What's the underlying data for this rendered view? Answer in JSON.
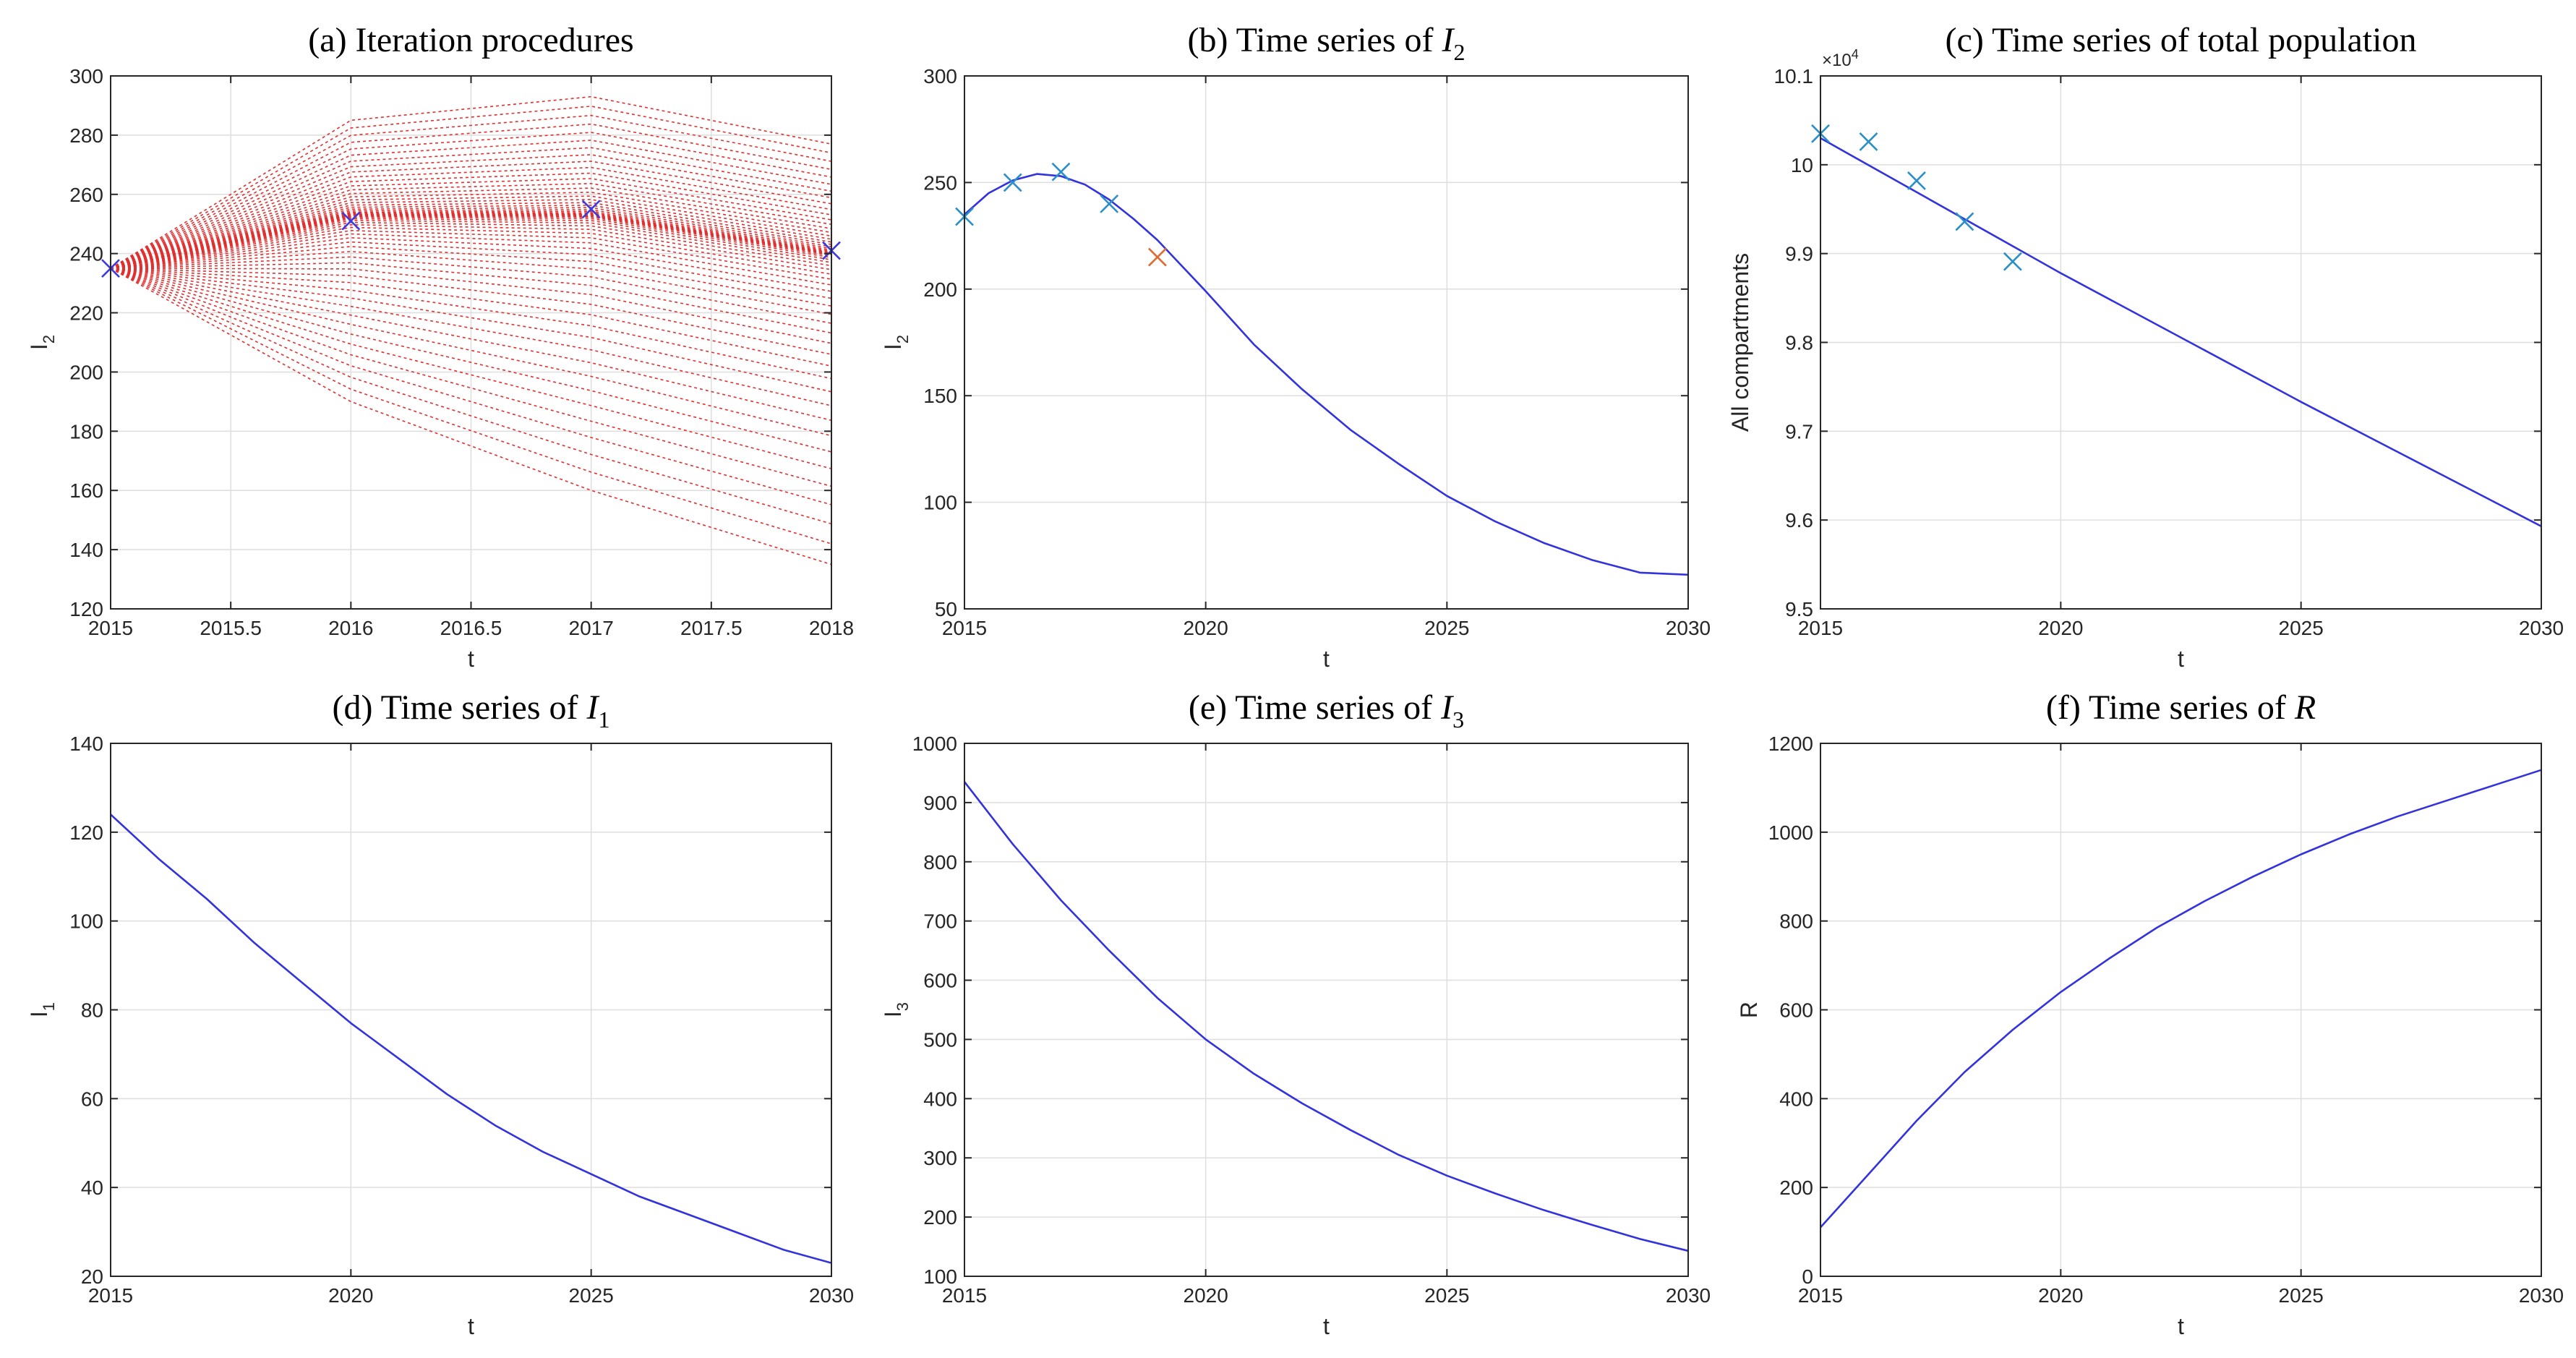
{
  "colors": {
    "curve": "#3333dd",
    "iteration": "#e03030",
    "marker_blue": "#3a3ae0",
    "marker_cyan": "#2a8fc8",
    "marker_orange": "#e06a30",
    "grid": "#dedede",
    "axes": "#262626"
  },
  "chart_data": [
    {
      "id": "a",
      "type": "line",
      "title": "(a) Iteration procedures",
      "title_prefix": "(a) Iteration procedures",
      "title_var": "",
      "title_sub": "",
      "xlabel": "t",
      "ylabel": "I",
      "ylabel_sub": "2",
      "xlim": [
        2015,
        2018
      ],
      "ylim": [
        120,
        300
      ],
      "xticks": [
        2015,
        2015.5,
        2016,
        2016.5,
        2017,
        2017.5,
        2018
      ],
      "xtick_labels": [
        "2015",
        "2015.5",
        "2016",
        "2016.5",
        "2017",
        "2017.5",
        "2018"
      ],
      "yticks": [
        120,
        140,
        160,
        180,
        200,
        220,
        240,
        260,
        280,
        300
      ],
      "ytick_labels": [
        "120",
        "140",
        "160",
        "180",
        "200",
        "220",
        "240",
        "260",
        "280",
        "300"
      ],
      "iterations": {
        "x": [
          2015,
          2016,
          2017,
          2018
        ],
        "start": 235,
        "max_curve": [
          285,
          293,
          277
        ],
        "min_curve": [
          190,
          160,
          135
        ],
        "converged": [
          253,
          253,
          240
        ],
        "count": 60
      },
      "markers": [
        {
          "x": 2015,
          "y": 235,
          "color": "marker_blue"
        },
        {
          "x": 2016,
          "y": 251,
          "color": "marker_blue"
        },
        {
          "x": 2017,
          "y": 255,
          "color": "marker_blue"
        },
        {
          "x": 2018,
          "y": 241,
          "color": "marker_blue"
        }
      ]
    },
    {
      "id": "b",
      "type": "line",
      "title": "(b) Time series of I2",
      "title_prefix": "(b) Time series of ",
      "title_var": "I",
      "title_sub": "2",
      "xlabel": "t",
      "ylabel": "I",
      "ylabel_sub": "2",
      "xlim": [
        2015,
        2030
      ],
      "ylim": [
        50,
        300
      ],
      "xticks": [
        2015,
        2020,
        2025,
        2030
      ],
      "xtick_labels": [
        "2015",
        "2020",
        "2025",
        "2030"
      ],
      "yticks": [
        50,
        100,
        150,
        200,
        250,
        300
      ],
      "ytick_labels": [
        "50",
        "100",
        "150",
        "200",
        "250",
        "300"
      ],
      "series": [
        {
          "name": "I2",
          "x": [
            2015,
            2015.5,
            2016,
            2016.5,
            2017,
            2017.5,
            2018,
            2018.5,
            2019,
            2019.5,
            2020,
            2021,
            2022,
            2023,
            2024,
            2025,
            2026,
            2027,
            2028,
            2029,
            2030
          ],
          "y": [
            235,
            245,
            251,
            254,
            253,
            249,
            242,
            233,
            223,
            211,
            199,
            174,
            153,
            134,
            118,
            103,
            91,
            81,
            73,
            67,
            66
          ]
        }
      ],
      "markers": [
        {
          "x": 2015,
          "y": 234,
          "color": "marker_cyan"
        },
        {
          "x": 2016,
          "y": 250,
          "color": "marker_cyan"
        },
        {
          "x": 2017,
          "y": 255,
          "color": "marker_cyan"
        },
        {
          "x": 2018,
          "y": 240,
          "color": "marker_cyan"
        },
        {
          "x": 2019,
          "y": 215,
          "color": "marker_orange"
        }
      ]
    },
    {
      "id": "c",
      "type": "line",
      "title": "(c) Time series of total population",
      "title_prefix": "(c) Time series of total population",
      "title_var": "",
      "title_sub": "",
      "xlabel": "t",
      "ylabel": "All compartments",
      "ylabel_sub": "",
      "exponent": "×10",
      "exponent_power": "4",
      "xlim": [
        2015,
        2030
      ],
      "ylim": [
        9.5,
        10.1
      ],
      "xticks": [
        2015,
        2020,
        2025,
        2030
      ],
      "xtick_labels": [
        "2015",
        "2020",
        "2025",
        "2030"
      ],
      "yticks": [
        9.5,
        9.6,
        9.7,
        9.8,
        9.9,
        10,
        10.1
      ],
      "ytick_labels": [
        "9.5",
        "9.6",
        "9.7",
        "9.8",
        "9.9",
        "10",
        "10.1"
      ],
      "series": [
        {
          "name": "Total",
          "x": [
            2015,
            2020,
            2025,
            2030
          ],
          "y": [
            10.03,
            9.878,
            9.733,
            9.593
          ]
        }
      ],
      "markers": [
        {
          "x": 2015,
          "y": 10.035,
          "color": "marker_cyan"
        },
        {
          "x": 2016,
          "y": 10.026,
          "color": "marker_cyan"
        },
        {
          "x": 2017,
          "y": 9.982,
          "color": "marker_cyan"
        },
        {
          "x": 2018,
          "y": 9.936,
          "color": "marker_cyan"
        },
        {
          "x": 2019,
          "y": 9.891,
          "color": "marker_cyan"
        }
      ]
    },
    {
      "id": "d",
      "type": "line",
      "title": "(d) Time series of I1",
      "title_prefix": "(d) Time series of ",
      "title_var": "I",
      "title_sub": "1",
      "xlabel": "t",
      "ylabel": "I",
      "ylabel_sub": "1",
      "xlim": [
        2015,
        2030
      ],
      "ylim": [
        20,
        140
      ],
      "xticks": [
        2015,
        2020,
        2025,
        2030
      ],
      "xtick_labels": [
        "2015",
        "2020",
        "2025",
        "2030"
      ],
      "yticks": [
        20,
        40,
        60,
        80,
        100,
        120,
        140
      ],
      "ytick_labels": [
        "20",
        "40",
        "60",
        "80",
        "100",
        "120",
        "140"
      ],
      "series": [
        {
          "name": "I1",
          "x": [
            2015,
            2016,
            2017,
            2018,
            2019,
            2020,
            2021,
            2022,
            2023,
            2024,
            2025,
            2026,
            2027,
            2028,
            2029,
            2030
          ],
          "y": [
            124,
            114,
            105,
            95,
            86,
            77,
            69,
            61,
            54,
            48,
            43,
            38,
            34,
            30,
            26,
            23
          ]
        }
      ]
    },
    {
      "id": "e",
      "type": "line",
      "title": "(e) Time series of I3",
      "title_prefix": "(e) Time series of ",
      "title_var": "I",
      "title_sub": "3",
      "xlabel": "t",
      "ylabel": "I",
      "ylabel_sub": "3",
      "xlim": [
        2015,
        2030
      ],
      "ylim": [
        100,
        1000
      ],
      "xticks": [
        2015,
        2020,
        2025,
        2030
      ],
      "xtick_labels": [
        "2015",
        "2020",
        "2025",
        "2030"
      ],
      "yticks": [
        100,
        200,
        300,
        400,
        500,
        600,
        700,
        800,
        900,
        1000
      ],
      "ytick_labels": [
        "100",
        "200",
        "300",
        "400",
        "500",
        "600",
        "700",
        "800",
        "900",
        "1000"
      ],
      "series": [
        {
          "name": "I3",
          "x": [
            2015,
            2016,
            2017,
            2018,
            2019,
            2020,
            2021,
            2022,
            2023,
            2024,
            2025,
            2026,
            2027,
            2028,
            2029,
            2030
          ],
          "y": [
            935,
            830,
            735,
            650,
            570,
            500,
            442,
            392,
            347,
            305,
            270,
            240,
            212,
            187,
            163,
            143
          ]
        }
      ]
    },
    {
      "id": "f",
      "type": "line",
      "title": "(f) Time series of R",
      "title_prefix": "(f) Time series of ",
      "title_var": "R",
      "title_sub": "",
      "xlabel": "t",
      "ylabel": "R",
      "ylabel_sub": "",
      "xlim": [
        2015,
        2030
      ],
      "ylim": [
        0,
        1200
      ],
      "xticks": [
        2015,
        2020,
        2025,
        2030
      ],
      "xtick_labels": [
        "2015",
        "2020",
        "2025",
        "2030"
      ],
      "yticks": [
        0,
        200,
        400,
        600,
        800,
        1000,
        1200
      ],
      "ytick_labels": [
        "0",
        "200",
        "400",
        "600",
        "800",
        "1000",
        "1200"
      ],
      "series": [
        {
          "name": "R",
          "x": [
            2015,
            2016,
            2017,
            2018,
            2019,
            2020,
            2021,
            2022,
            2023,
            2024,
            2025,
            2026,
            2027,
            2028,
            2029,
            2030
          ],
          "y": [
            110,
            230,
            350,
            460,
            555,
            640,
            715,
            785,
            845,
            900,
            950,
            995,
            1035,
            1070,
            1105,
            1140
          ]
        }
      ]
    }
  ]
}
